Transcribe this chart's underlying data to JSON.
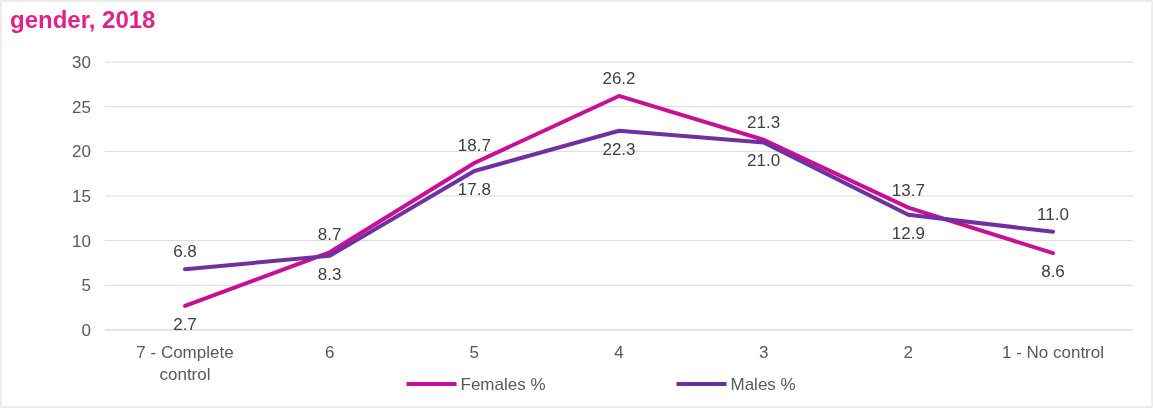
{
  "chart_data": {
    "type": "line",
    "title": "gender, 2018",
    "categories": [
      "7 - Complete control",
      "6",
      "5",
      "4",
      "3",
      "2",
      "1 - No control"
    ],
    "series": [
      {
        "name": "Females %",
        "color": "#c90f95",
        "values": [
          2.7,
          8.7,
          18.7,
          26.2,
          21.3,
          13.7,
          8.6
        ],
        "value_labels": [
          "2.7",
          "8.7",
          "18.7",
          "26.2",
          "21.3",
          "13.7",
          "8.6"
        ]
      },
      {
        "name": "Males %",
        "color": "#7030a0",
        "values": [
          6.8,
          8.3,
          17.8,
          22.3,
          21.0,
          12.9,
          11.0
        ],
        "value_labels": [
          "6.8",
          "8.3",
          "17.8",
          "22.3",
          "21.0",
          "12.9",
          "11.0"
        ]
      }
    ],
    "ylim": [
      0,
      30
    ],
    "yticks": [
      0,
      5,
      10,
      15,
      20,
      25,
      30
    ],
    "grid": "y",
    "legend": "bottom",
    "marker": "none",
    "line_style": "solid"
  }
}
